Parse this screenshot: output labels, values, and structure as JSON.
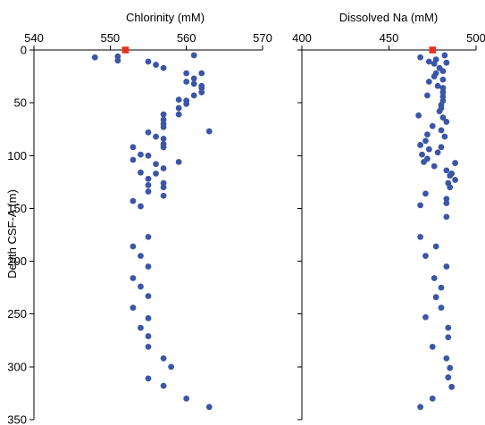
{
  "chart_data": [
    {
      "type": "scatter",
      "title": "",
      "xlabel": "Chlorinity (mM)",
      "ylabel": "Depth CSF-A (m)",
      "x_ticks": [
        540,
        550,
        560,
        570
      ],
      "y_ticks": [
        0,
        50,
        100,
        150,
        200,
        250,
        300,
        350
      ],
      "xlim": [
        540,
        570
      ],
      "ylim": [
        350,
        0
      ],
      "x_axis_position": "top",
      "grid": false,
      "colors": {
        "samples": "#3b56a6",
        "reference": "#e8311c"
      },
      "reference_point": {
        "x": 552,
        "y": 0
      },
      "series": [
        {
          "points": [
            [
              548,
              7
            ],
            [
              551,
              6
            ],
            [
              551,
              10
            ],
            [
              555,
              11
            ],
            [
              556,
              14
            ],
            [
              557,
              17
            ],
            [
              561,
              5
            ],
            [
              560,
              22
            ],
            [
              562,
              22
            ],
            [
              561,
              27
            ],
            [
              560,
              30
            ],
            [
              561,
              32
            ],
            [
              562,
              34
            ],
            [
              562,
              36
            ],
            [
              562,
              40
            ],
            [
              561,
              43
            ],
            [
              559,
              47
            ],
            [
              560,
              48
            ],
            [
              560,
              51
            ],
            [
              559,
              55
            ],
            [
              557,
              61
            ],
            [
              559,
              61
            ],
            [
              557,
              66
            ],
            [
              557,
              70
            ],
            [
              557,
              73
            ],
            [
              563,
              77
            ],
            [
              555,
              78
            ],
            [
              556,
              82
            ],
            [
              557,
              84
            ],
            [
              557,
              89
            ],
            [
              553,
              92
            ],
            [
              557,
              92
            ],
            [
              554,
              99
            ],
            [
              555,
              100
            ],
            [
              553,
              104
            ],
            [
              559,
              106
            ],
            [
              556,
              108
            ],
            [
              557,
              112
            ],
            [
              554,
              116
            ],
            [
              556,
              117
            ],
            [
              555,
              122
            ],
            [
              557,
              126
            ],
            [
              555,
              128
            ],
            [
              557,
              130
            ],
            [
              555,
              134
            ],
            [
              557,
              138
            ],
            [
              553,
              143
            ],
            [
              554,
              148
            ],
            [
              555,
              177
            ],
            [
              553,
              186
            ],
            [
              554,
              195
            ],
            [
              555,
              205
            ],
            [
              553,
              216
            ],
            [
              554,
              224
            ],
            [
              555,
              233
            ],
            [
              553,
              244
            ],
            [
              555,
              254
            ],
            [
              554,
              263
            ],
            [
              555,
              271
            ],
            [
              555,
              281
            ],
            [
              557,
              292
            ],
            [
              558,
              300
            ],
            [
              555,
              311
            ],
            [
              557,
              318
            ],
            [
              560,
              330
            ],
            [
              563,
              338
            ]
          ]
        }
      ]
    },
    {
      "type": "scatter",
      "title": "",
      "xlabel": "Dissolved Na (mM)",
      "ylabel": "",
      "x_ticks": [
        400,
        450,
        500
      ],
      "y_ticks": [
        0,
        50,
        100,
        150,
        200,
        250,
        300,
        350
      ],
      "xlim": [
        400,
        500
      ],
      "ylim": [
        350,
        0
      ],
      "x_axis_position": "top",
      "grid": false,
      "colors": {
        "samples": "#3b56a6",
        "reference": "#e8311c"
      },
      "reference_point": {
        "x": 475,
        "y": 0
      },
      "series": [
        {
          "points": [
            [
              482,
              5
            ],
            [
              468,
              7
            ],
            [
              477,
              9
            ],
            [
              473,
              11
            ],
            [
              476,
              13
            ],
            [
              483,
              12
            ],
            [
              479,
              17
            ],
            [
              481,
              20
            ],
            [
              477,
              22
            ],
            [
              476,
              25
            ],
            [
              481,
              28
            ],
            [
              473,
              30
            ],
            [
              478,
              34
            ],
            [
              481,
              36
            ],
            [
              481,
              40
            ],
            [
              472,
              43
            ],
            [
              481,
              44
            ],
            [
              481,
              48
            ],
            [
              480,
              52
            ],
            [
              480,
              55
            ],
            [
              479,
              58
            ],
            [
              467,
              62
            ],
            [
              481,
              64
            ],
            [
              483,
              68
            ],
            [
              475,
              72
            ],
            [
              480,
              76
            ],
            [
              472,
              80
            ],
            [
              482,
              82
            ],
            [
              471,
              86
            ],
            [
              468,
              90
            ],
            [
              480,
              92
            ],
            [
              473,
              94
            ],
            [
              478,
              97
            ],
            [
              469,
              99
            ],
            [
              472,
              103
            ],
            [
              470,
              106
            ],
            [
              488,
              107
            ],
            [
              476,
              110
            ],
            [
              483,
              114
            ],
            [
              486,
              117
            ],
            [
              485,
              119
            ],
            [
              488,
              123
            ],
            [
              484,
              126
            ],
            [
              485,
              130
            ],
            [
              471,
              136
            ],
            [
              483,
              141
            ],
            [
              483,
              145
            ],
            [
              468,
              147
            ],
            [
              483,
              158
            ],
            [
              468,
              177
            ],
            [
              477,
              186
            ],
            [
              471,
              195
            ],
            [
              483,
              205
            ],
            [
              476,
              216
            ],
            [
              480,
              225
            ],
            [
              477,
              234
            ],
            [
              480,
              244
            ],
            [
              471,
              253
            ],
            [
              484,
              263
            ],
            [
              484,
              272
            ],
            [
              475,
              281
            ],
            [
              483,
              292
            ],
            [
              485,
              301
            ],
            [
              484,
              310
            ],
            [
              486,
              319
            ],
            [
              475,
              330
            ],
            [
              468,
              338
            ]
          ]
        }
      ]
    }
  ]
}
